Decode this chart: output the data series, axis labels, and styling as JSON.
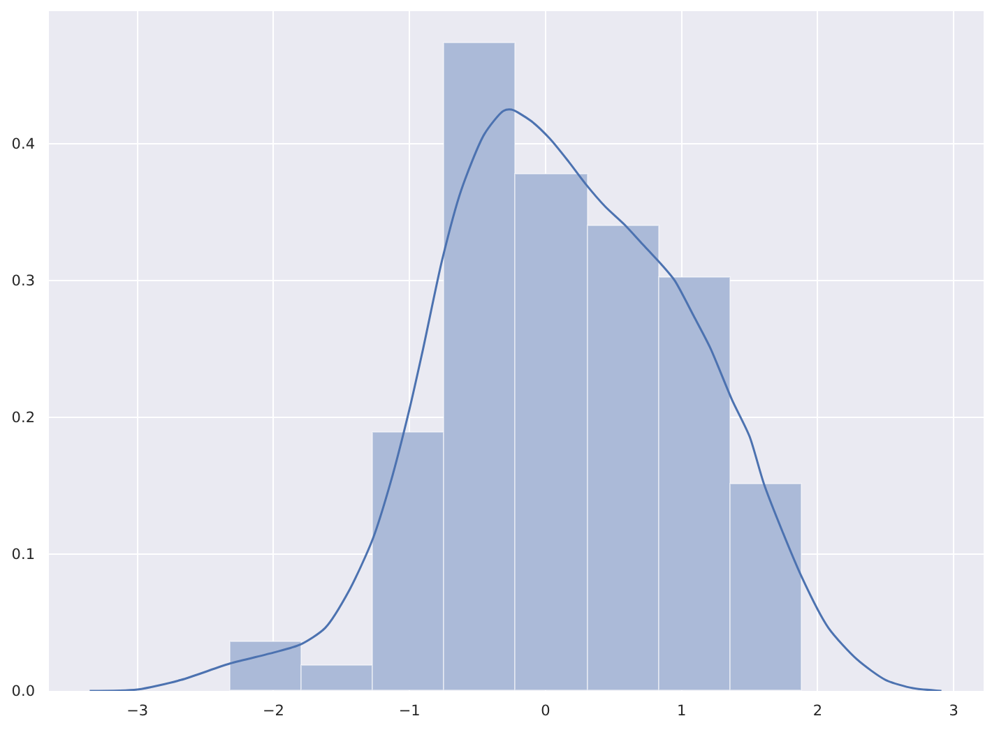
{
  "chart_data": {
    "type": "histogram",
    "series": [
      {
        "bins": [
          -2.32,
          -1.79,
          -1.27,
          -0.74,
          -0.22,
          0.31,
          0.84,
          1.36,
          1.89
        ],
        "values": [
          0.036,
          0.018,
          0.189,
          0.474,
          0.378,
          0.34,
          0.302,
          0.151
        ],
        "color": "#abbad8"
      },
      {
        "type": "line",
        "color": "#4c72b0",
        "x": [
          -3.35,
          -3.0,
          -2.68,
          -2.32,
          -2.0,
          -1.8,
          -1.62,
          -1.44,
          -1.27,
          -1.14,
          -1.0,
          -0.9,
          -0.76,
          -0.62,
          -0.45,
          -0.31,
          -0.25,
          -0.11,
          0.03,
          0.17,
          0.3,
          0.44,
          0.58,
          0.71,
          0.85,
          0.95,
          1.09,
          1.21,
          1.37,
          1.5,
          1.61,
          1.88,
          2.08,
          2.29,
          2.5,
          2.7,
          2.91
        ],
        "values": [
          0,
          0.001,
          0.008,
          0.02,
          0.028,
          0.034,
          0.046,
          0.074,
          0.111,
          0.152,
          0.206,
          0.25,
          0.315,
          0.366,
          0.407,
          0.424,
          0.425,
          0.417,
          0.404,
          0.387,
          0.37,
          0.354,
          0.341,
          0.327,
          0.312,
          0.3,
          0.274,
          0.251,
          0.213,
          0.186,
          0.15,
          0.084,
          0.046,
          0.023,
          0.008,
          0.002,
          0
        ]
      }
    ],
    "xlim": [
      -3.65,
      3.22
    ],
    "ylim": [
      0,
      0.497
    ],
    "xticks": [
      {
        "value": -3,
        "label": "−3"
      },
      {
        "value": -2,
        "label": "−2"
      },
      {
        "value": -1,
        "label": "−1"
      },
      0,
      1,
      2,
      3
    ],
    "yticks": [
      {
        "value": 0,
        "label": "0.0"
      },
      0.1,
      0.2,
      0.3,
      0.4
    ],
    "grid": true
  }
}
